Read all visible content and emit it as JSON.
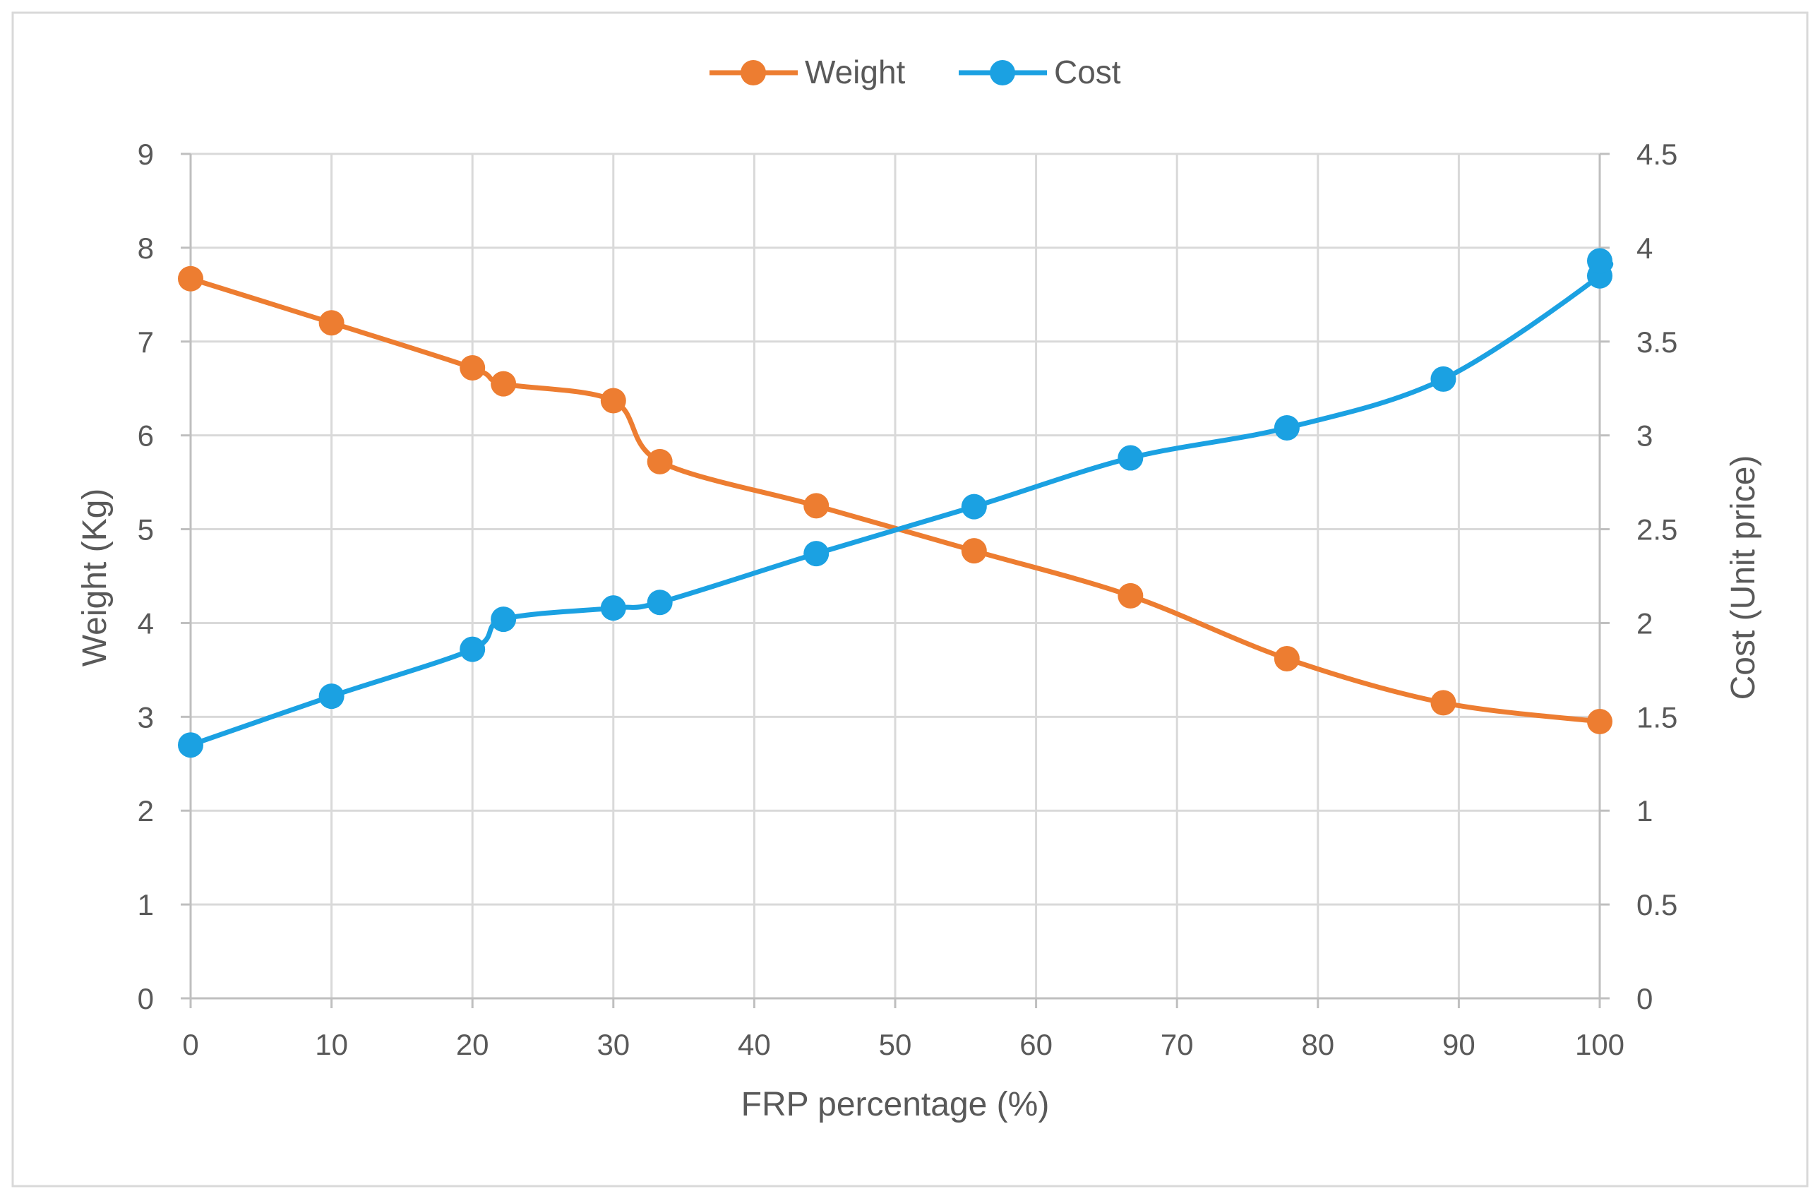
{
  "chart_data": {
    "type": "line",
    "x_title": "FRP percentage (%)",
    "y_left_title": "Weight (Kg)",
    "y_right_title": "Cost (Unit price)",
    "xlim": [
      0,
      100
    ],
    "ylim_left": [
      0,
      9
    ],
    "ylim_right": [
      0,
      4.5
    ],
    "x_ticks": [
      "0",
      "10",
      "20",
      "30",
      "40",
      "50",
      "60",
      "70",
      "80",
      "90",
      "100"
    ],
    "y_left_ticks": [
      "0",
      "1",
      "2",
      "3",
      "4",
      "5",
      "6",
      "7",
      "8",
      "9"
    ],
    "y_right_ticks": [
      "0",
      "0.5",
      "1",
      "1.5",
      "2",
      "2.5",
      "3",
      "3.5",
      "4",
      "4.5"
    ],
    "grid": true,
    "legend_position": "top-center",
    "series": [
      {
        "name": "Weight",
        "axis": "left",
        "color": "#ED7D31",
        "x": [
          0,
          10,
          20,
          22.2,
          30,
          33.3,
          44.4,
          55.6,
          66.7,
          77.8,
          88.9,
          100
        ],
        "y": [
          7.67,
          7.2,
          6.72,
          6.55,
          6.37,
          5.72,
          5.25,
          4.77,
          4.29,
          3.62,
          3.15,
          2.95
        ]
      },
      {
        "name": "Cost",
        "axis": "right",
        "color": "#1BA1E2",
        "x": [
          0,
          10,
          20,
          22.2,
          30,
          33.3,
          44.4,
          55.6,
          66.7,
          77.8,
          88.9,
          100,
          100
        ],
        "y": [
          1.35,
          1.61,
          1.86,
          2.02,
          2.08,
          2.11,
          2.37,
          2.62,
          2.88,
          3.04,
          3.3,
          3.85,
          3.93
        ]
      }
    ]
  }
}
